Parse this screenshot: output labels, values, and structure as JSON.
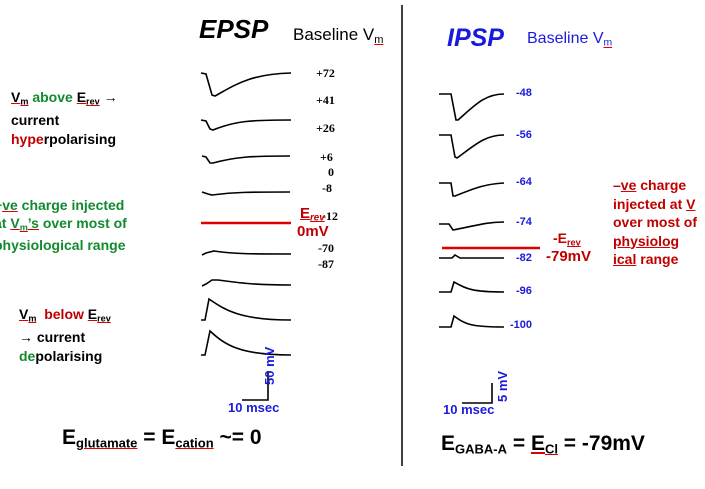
{
  "epsp": {
    "title": "EPSP",
    "baseline_label": "Baseline V",
    "baseline_sub": "m",
    "baseline_values": [
      "+72",
      "+41",
      "+26",
      "+6",
      "0",
      "-8",
      "-12",
      "-70",
      "-87"
    ],
    "erev_label": "E",
    "erev_sub": "rev",
    "erev_value": "0mV",
    "scale_time": "10 msec",
    "scale_voltage": "50 mV",
    "equation": {
      "e1": "E",
      "s1": "glutamate",
      "eq": " = ",
      "e2": "E",
      "s2": "cation",
      "tail": " ~= 0"
    }
  },
  "ipsp": {
    "title": "IPSP",
    "baseline_label": "Baseline V",
    "baseline_sub": "m",
    "baseline_values": [
      "-48",
      "-56",
      "-64",
      "-74",
      "-82",
      "-96",
      "-100"
    ],
    "erev_label": "-E",
    "erev_sub": "rev",
    "erev_value": "-79mV",
    "scale_time": "10 msec",
    "scale_voltage": "5 mV",
    "equation": {
      "e1": "E",
      "s1": "GABA-A",
      "eq": " = ",
      "e2": "E",
      "s2": "Cl",
      "tail": " = -79mV"
    }
  },
  "notes": {
    "above": {
      "v": "V",
      "vsub": "m",
      "mid": " above ",
      "e": "E",
      "esub": "rev",
      "arrow": " →",
      "line2": "current",
      "hyp_a": "hype",
      "hyp_b": "rpolarising"
    },
    "pos_charge": {
      "line1_a": "+",
      "line1_b": "ve",
      "line1_c": " charge injected",
      "line2_a": "at ",
      "line2_b": "V",
      "line2_sub": "m",
      "line2_c": "’s",
      "line2_d": " over most of",
      "line3": "physiological range"
    },
    "below": {
      "v": "V",
      "vsub": "m",
      "mid": "  below ",
      "e": "E",
      "esub": "rev",
      "line2": "→ current",
      "dep_a": "de",
      "dep_b": "polarising"
    },
    "neg_charge": {
      "line1_a": "–",
      "line1_b": "ve",
      "line1_c": " charge",
      "line2_a": "injected at ",
      "line2_b": "V",
      "line3": "over most of",
      "line4": "physiolog",
      "line5_a": "ical",
      "line5_b": " range"
    }
  },
  "colors": {
    "trace": "#000000",
    "erev_line": "#e00000",
    "label_blue": "#1a1adc",
    "green": "#118a2e",
    "red": "#c00000"
  }
}
